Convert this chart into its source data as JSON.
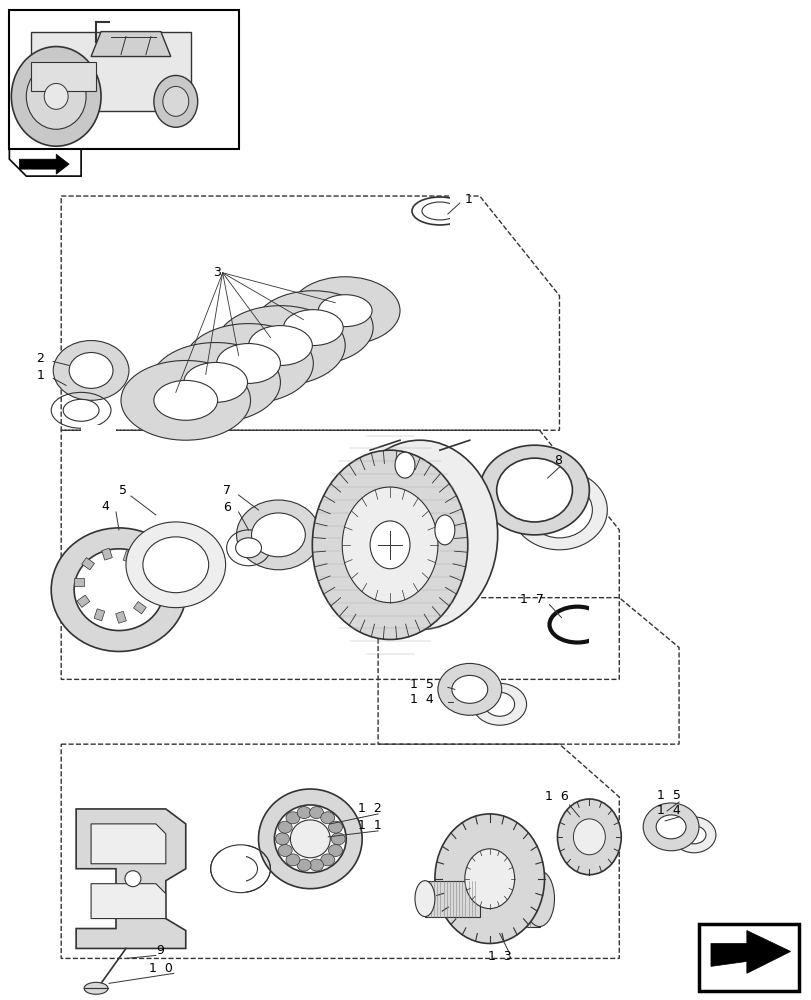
{
  "bg_color": "#ffffff",
  "fig_width": 8.12,
  "fig_height": 10.0,
  "line_color": "#333333",
  "gray_fill": "#d8d8d8",
  "light_fill": "#eeeeee",
  "white": "#ffffff"
}
